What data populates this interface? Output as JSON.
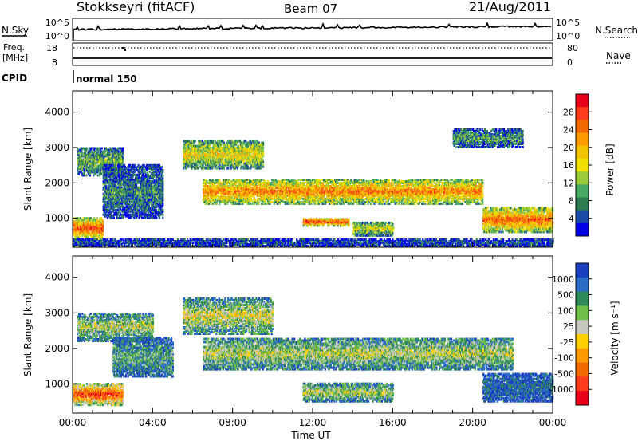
{
  "header": {
    "station": "Stokkseyri (fitACF)",
    "beam": "Beam 07",
    "date": "21/Aug/2011"
  },
  "status_panels": {
    "nsky_label": "N.Sky",
    "nsky_ticks": [
      "10^5",
      "10^0"
    ],
    "nsearch_label": "N.Search",
    "nsearch_ticks": [
      "10^5",
      "10^0"
    ],
    "freq_label_line1": "Freq.",
    "freq_label_line2": "[MHz]",
    "freq_ticks": [
      "18",
      "8"
    ],
    "nave_label": "Nave",
    "nave_ticks": [
      "80",
      "0"
    ],
    "cpid_label": "CPID",
    "cpid_value": "normal 150"
  },
  "chart_data": [
    {
      "type": "heatmap",
      "name": "power",
      "ylabel": "Slant Range [km]",
      "yticks": [
        1000,
        2000,
        3000,
        4000
      ],
      "ylim": [
        180,
        4600
      ],
      "xlim_hours": [
        0,
        24
      ],
      "colorbar": {
        "label": "Power [dB]",
        "ticks": [
          "28",
          "24",
          "20",
          "16",
          "12",
          "8",
          "4"
        ],
        "colors": [
          "#e8001a",
          "#ff3c1c",
          "#f06a00",
          "#ff9a00",
          "#f2c400",
          "#f0e000",
          "#9ccc3a",
          "#4aaa64",
          "#2e7c52",
          "#1a4aa8",
          "#0000e8"
        ]
      },
      "features": [
        {
          "start": 0.0,
          "end": 1.5,
          "range_low": 400,
          "range_high": 1000,
          "level": 0.85
        },
        {
          "start": 0.2,
          "end": 2.5,
          "range_low": 2200,
          "range_high": 3000,
          "level": 0.35
        },
        {
          "start": 1.5,
          "end": 4.5,
          "range_low": 1000,
          "range_high": 2500,
          "level": 0.25
        },
        {
          "start": 5.5,
          "end": 9.5,
          "range_low": 2400,
          "range_high": 3200,
          "level": 0.55
        },
        {
          "start": 6.5,
          "end": 20.5,
          "range_low": 1400,
          "range_high": 2100,
          "level": 0.75
        },
        {
          "start": 11.5,
          "end": 13.8,
          "range_low": 780,
          "range_high": 1000,
          "level": 0.9
        },
        {
          "start": 14.0,
          "end": 16.0,
          "range_low": 500,
          "range_high": 900,
          "level": 0.5
        },
        {
          "start": 19.0,
          "end": 22.5,
          "range_low": 3000,
          "range_high": 3500,
          "level": 0.3
        },
        {
          "start": 20.5,
          "end": 24.0,
          "range_low": 600,
          "range_high": 1300,
          "level": 0.8
        },
        {
          "start": 0.0,
          "end": 24.0,
          "range_low": 200,
          "range_high": 400,
          "level": 0.15
        }
      ]
    },
    {
      "type": "heatmap",
      "name": "velocity",
      "ylabel": "Slant Range [km]",
      "yticks": [
        1000,
        2000,
        3000,
        4000
      ],
      "ylim": [
        180,
        4600
      ],
      "xlim_hours": [
        0,
        24
      ],
      "xlabel": "Time UT",
      "xticks": [
        "00:00",
        "04:00",
        "08:00",
        "12:00",
        "16:00",
        "20:00",
        "00:00"
      ],
      "colorbar": {
        "label": "Velocity [m s⁻¹]",
        "ticks": [
          "1000",
          "500",
          "100",
          "25",
          "-25",
          "-100",
          "-500",
          "-1000"
        ],
        "colors": [
          "#1a3fbf",
          "#2b6cc8",
          "#2e8b57",
          "#6fbf4a",
          "#c8c8c0",
          "#ffd000",
          "#ff9a00",
          "#f06a00",
          "#ff3c1c",
          "#e8001a"
        ]
      },
      "features": [
        {
          "start": 0.0,
          "end": 2.5,
          "range_low": 400,
          "range_high": 1000,
          "level": 0.85
        },
        {
          "start": 0.2,
          "end": 4.0,
          "range_low": 2200,
          "range_high": 3000,
          "level": 0.45
        },
        {
          "start": 2.0,
          "end": 5.0,
          "range_low": 1200,
          "range_high": 2300,
          "level": 0.3
        },
        {
          "start": 5.5,
          "end": 10.0,
          "range_low": 2400,
          "range_high": 3400,
          "level": 0.5
        },
        {
          "start": 6.5,
          "end": 22.0,
          "range_low": 1400,
          "range_high": 2300,
          "level": 0.45
        },
        {
          "start": 11.5,
          "end": 16.0,
          "range_low": 500,
          "range_high": 1000,
          "level": 0.45
        },
        {
          "start": 20.5,
          "end": 24.0,
          "range_low": 500,
          "range_high": 1300,
          "level": 0.15
        }
      ]
    }
  ]
}
